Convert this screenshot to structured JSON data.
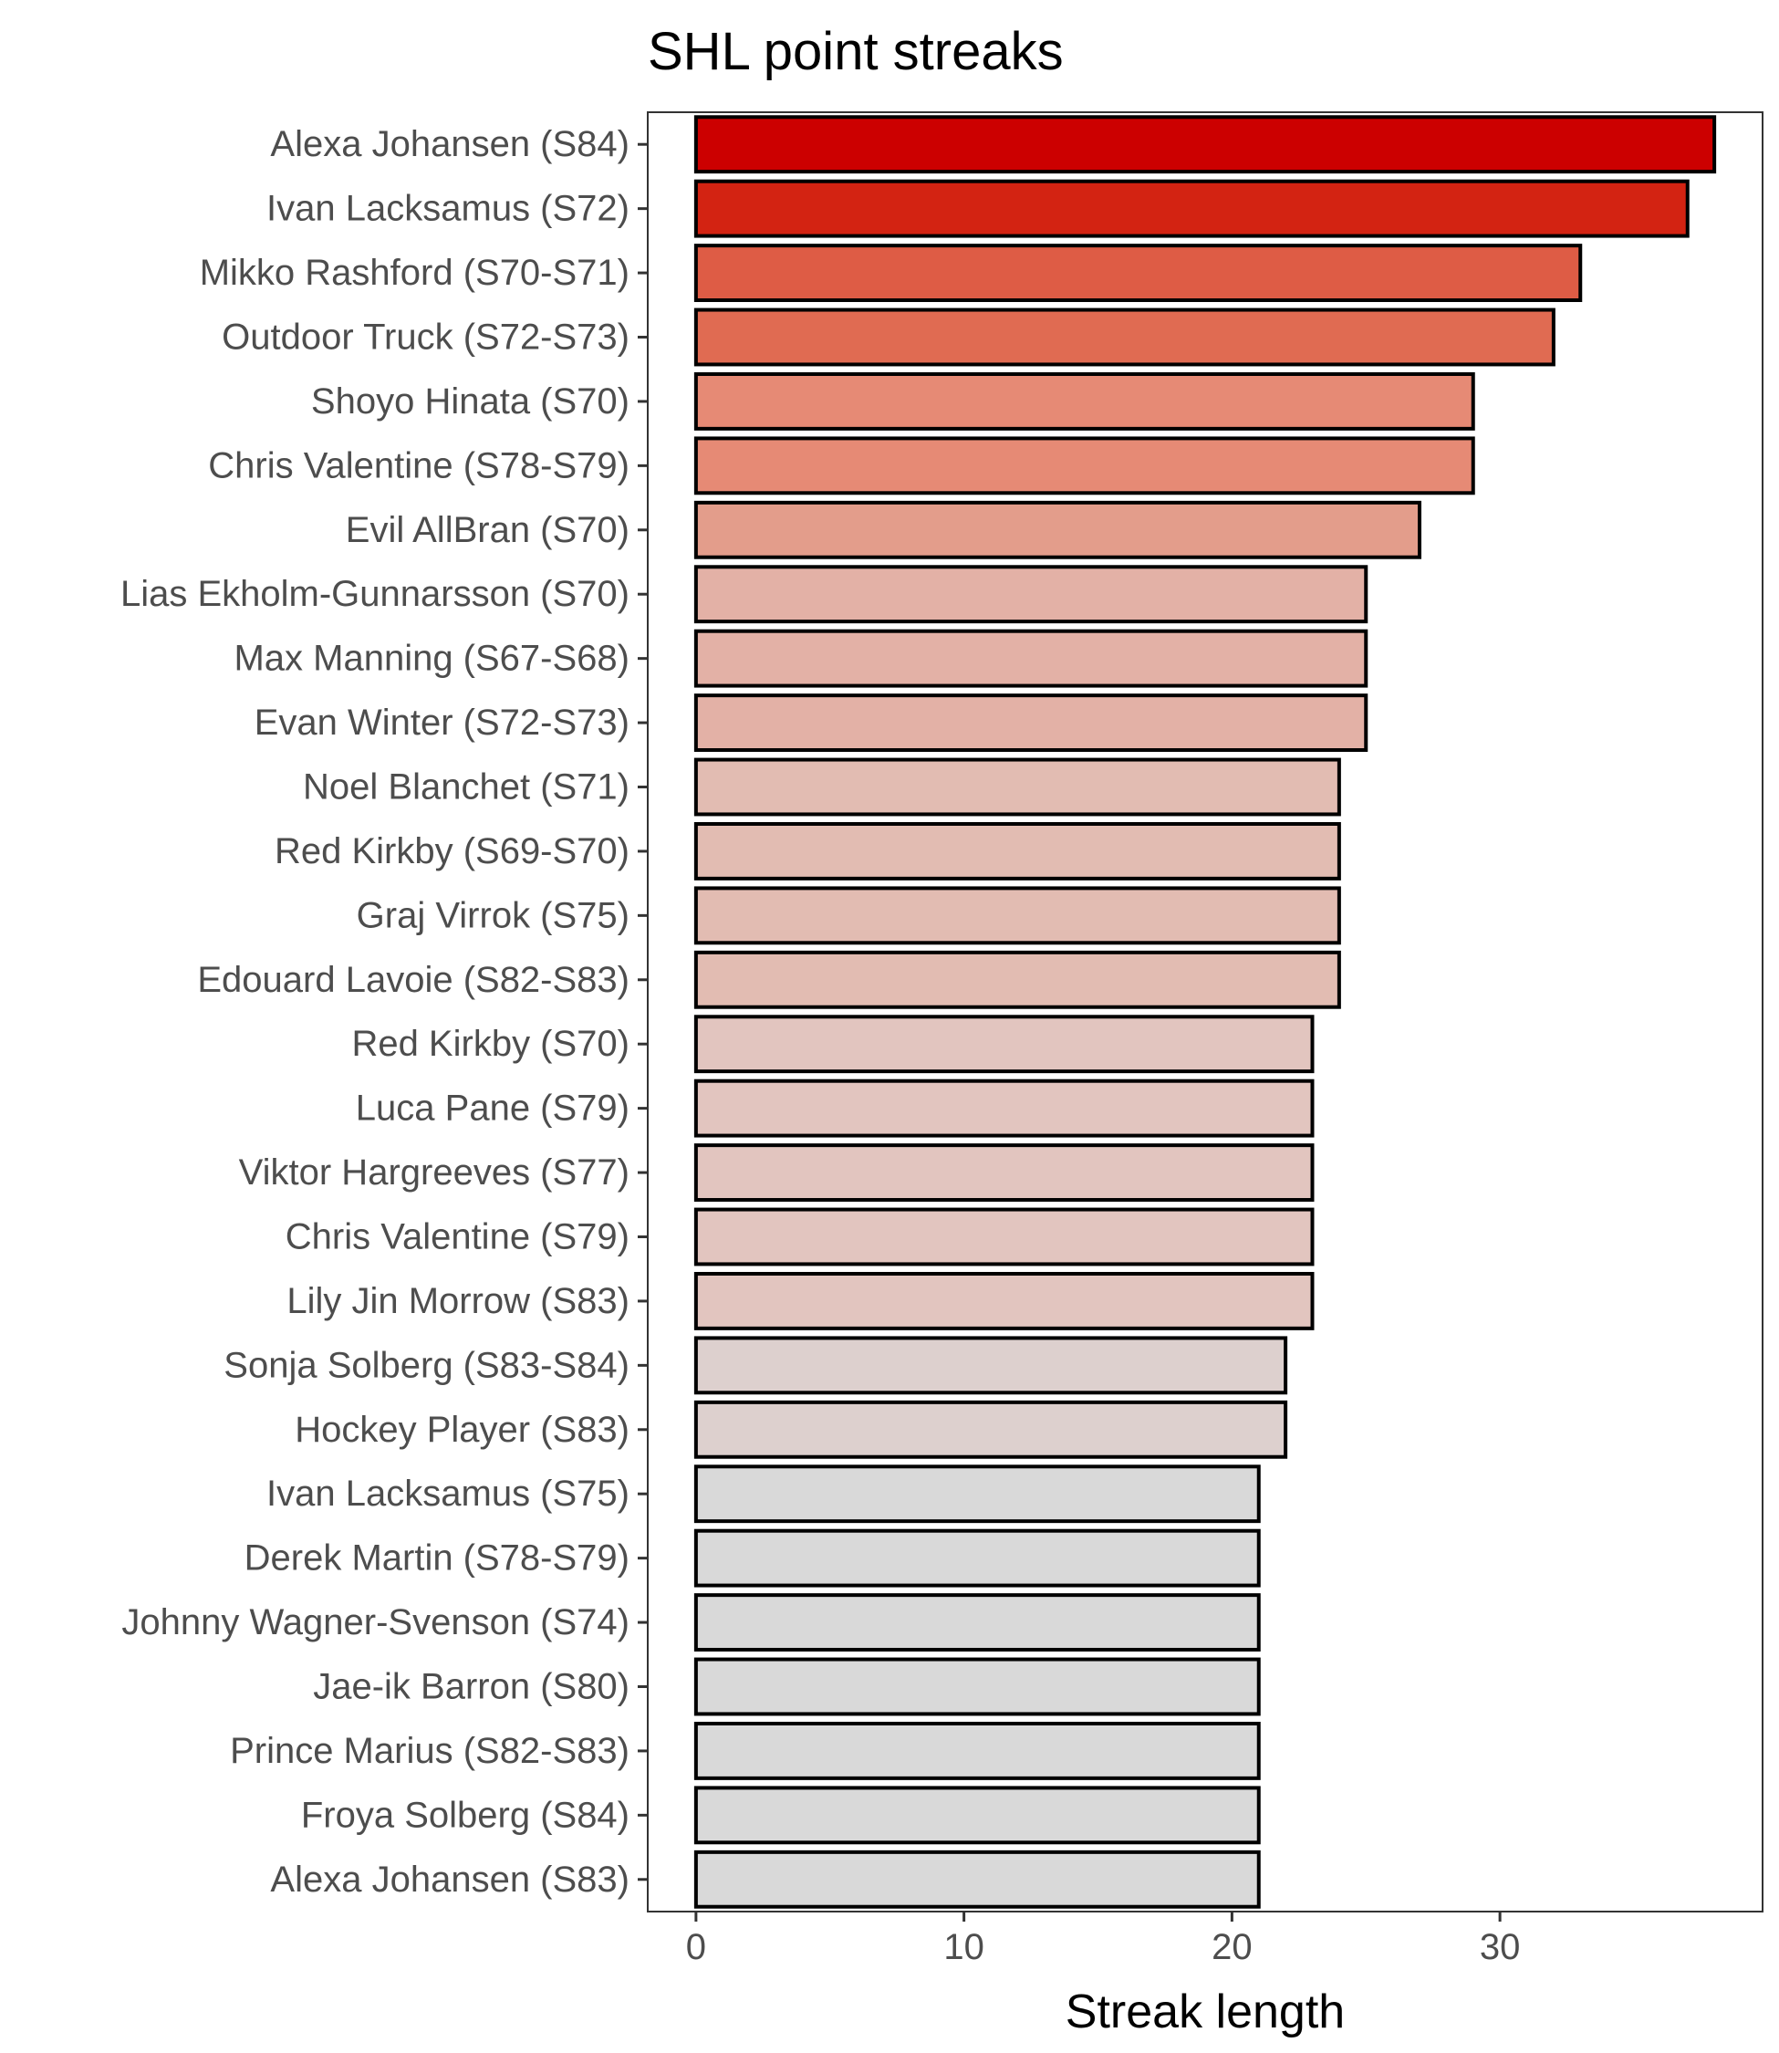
{
  "chart_data": {
    "type": "bar",
    "orientation": "horizontal",
    "title": "SHL point streaks",
    "xlabel": "Streak length",
    "ylabel": "",
    "xlim": [
      -1.8,
      39.8
    ],
    "xticks": [
      0,
      10,
      20,
      30
    ],
    "grid": false,
    "legend": "none",
    "categories": [
      "Alexa Johansen (S84)",
      "Ivan Lacksamus (S72)",
      "Mikko Rashford (S70-S71)",
      "Outdoor Truck (S72-S73)",
      "Shoyo Hinata (S70)",
      "Chris Valentine (S78-S79)",
      "Evil AllBran (S70)",
      "Lias Ekholm-Gunnarsson (S70)",
      "Max Manning (S67-S68)",
      "Evan Winter (S72-S73)",
      "Noel Blanchet (S71)",
      "Red Kirkby (S69-S70)",
      "Graj Virrok (S75)",
      "Edouard Lavoie (S82-S83)",
      "Red Kirkby (S70)",
      "Luca Pane (S79)",
      "Viktor Hargreeves (S77)",
      "Chris Valentine (S79)",
      "Lily Jin Morrow (S83)",
      "Sonja Solberg (S83-S84)",
      "Hockey Player (S83)",
      "Ivan Lacksamus (S75)",
      "Derek Martin (S78-S79)",
      "Johnny Wagner-Svenson (S74)",
      "Jae-ik Barron (S80)",
      "Prince Marius (S82-S83)",
      "Froya Solberg (S84)",
      "Alexa Johansen (S83)"
    ],
    "values": [
      38,
      37,
      33,
      32,
      29,
      29,
      27,
      25,
      25,
      25,
      24,
      24,
      24,
      24,
      23,
      23,
      23,
      23,
      23,
      22,
      22,
      21,
      21,
      21,
      21,
      21,
      21,
      21
    ],
    "colors": {
      "38": "#cc0000",
      "37": "#d32312",
      "33": "#de5c45",
      "32": "#e06b52",
      "29": "#e68a75",
      "27": "#e39d8b",
      "25": "#e3b1a6",
      "24": "#e2bcb2",
      "23": "#e2c5bf",
      "22": "#ddd0ce",
      "21": "#d9d9d9"
    },
    "bar_outline": "#000000",
    "panel_border": "#333333"
  }
}
